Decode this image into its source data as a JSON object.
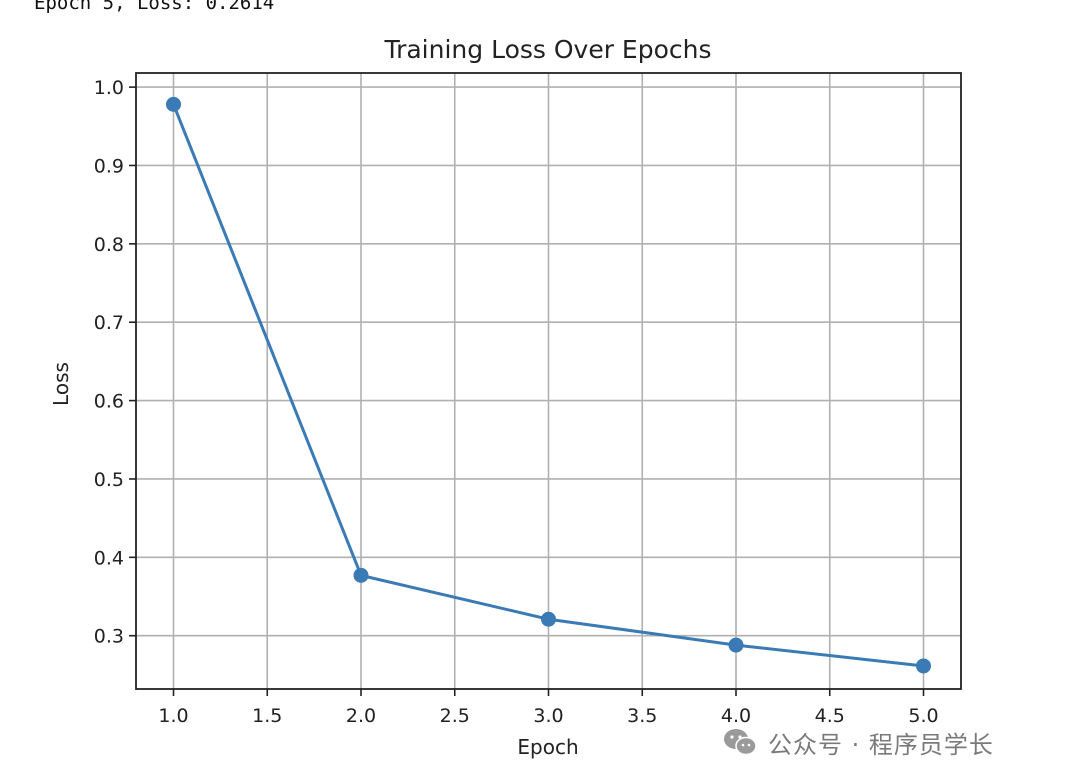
{
  "console": {
    "last_line": "Epoch 5, Loss: 0.2614"
  },
  "chart_data": {
    "type": "line",
    "title": "Training Loss Over Epochs",
    "xlabel": "Epoch",
    "ylabel": "Loss",
    "x": [
      1,
      2,
      3,
      4,
      5
    ],
    "series": [
      {
        "values": [
          0.978,
          0.377,
          0.321,
          0.288,
          0.2614
        ],
        "color": "#3a7ab5",
        "marker": "circle"
      }
    ],
    "xlim": [
      0.8,
      5.2
    ],
    "ylim": [
      0.232,
      1.018
    ],
    "xticks": [
      "1.0",
      "1.5",
      "2.0",
      "2.5",
      "3.0",
      "3.5",
      "4.0",
      "4.5",
      "5.0"
    ],
    "yticks": [
      "0.3",
      "0.4",
      "0.5",
      "0.6",
      "0.7",
      "0.8",
      "0.9",
      "1.0"
    ],
    "grid": true
  },
  "watermark": {
    "icon": "wechat-icon",
    "text": "公众号 · 程序员学长"
  }
}
